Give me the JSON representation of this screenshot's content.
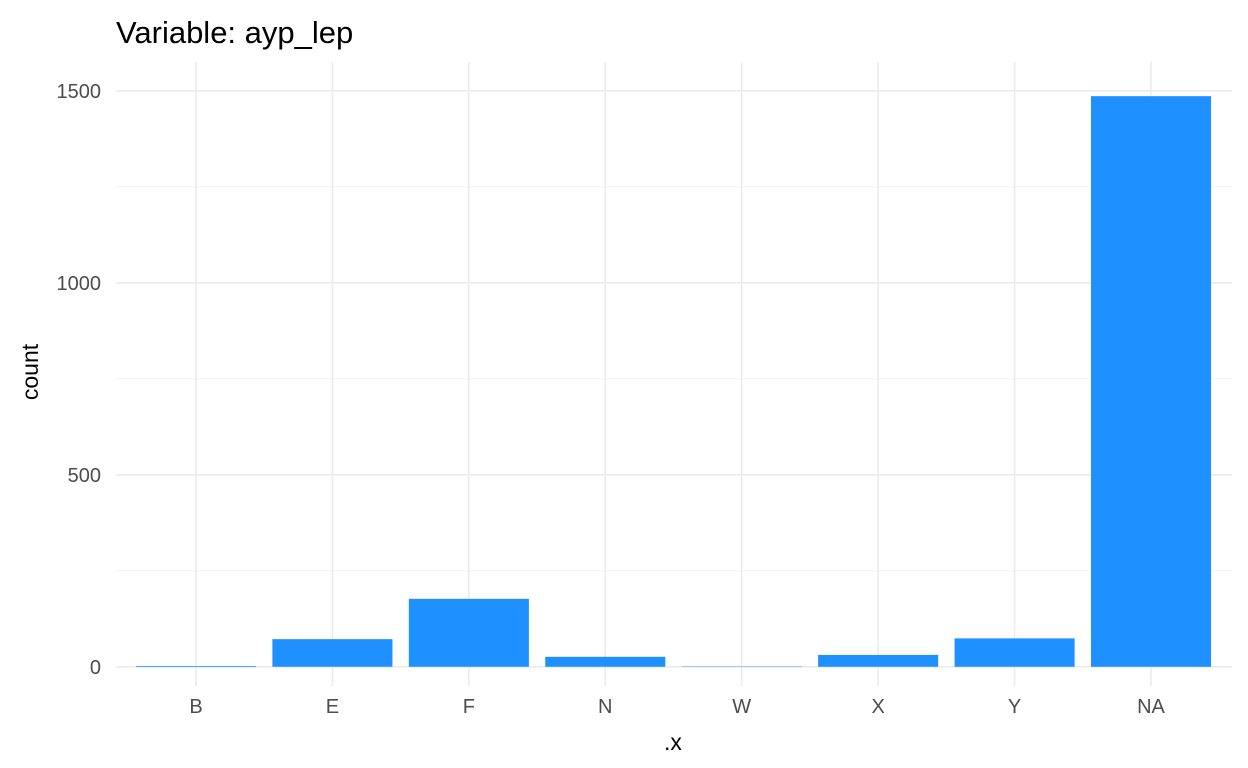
{
  "chart_data": {
    "type": "bar",
    "title": "Variable: ayp_lep",
    "xlabel": ".x",
    "ylabel": "count",
    "categories": [
      "B",
      "E",
      "F",
      "N",
      "W",
      "X",
      "Y",
      "NA"
    ],
    "values": [
      2,
      72,
      177,
      26,
      1,
      31,
      74,
      1486
    ],
    "ylim": [
      -50,
      1575
    ],
    "yticks": [
      0,
      500,
      1000,
      1500
    ],
    "grid": true,
    "legend": "none",
    "bar_color": "#1E90FF"
  }
}
